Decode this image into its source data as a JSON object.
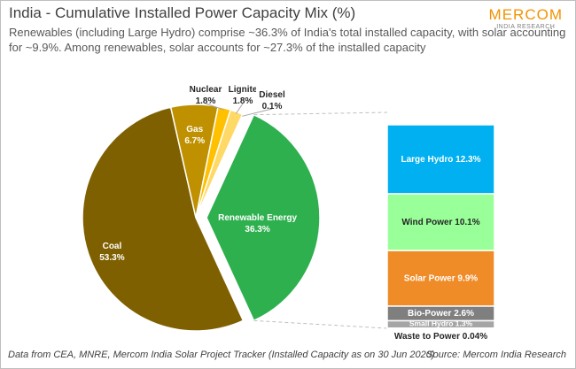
{
  "chart_data": [
    {
      "type": "pie",
      "title": "India - Cumulative Installed Power Capacity Mix (%)",
      "subtitle": "Renewables (including Large Hydro) comprise ~36.3% of India's total installed capacity, with solar accounting for ~9.9%. Among renewables, solar accounts for ~27.3% of the installed capacity",
      "categories": [
        "Coal",
        "Gas",
        "Nuclear",
        "Lignite",
        "Diesel",
        "Renewable Energy"
      ],
      "values": [
        53.3,
        6.7,
        1.8,
        1.8,
        0.1,
        36.3
      ],
      "value_labels": [
        "53.3%",
        "6.7%",
        "1.8%",
        "1.8%",
        "0.1%",
        "36.3%"
      ],
      "colors": [
        "#7f6000",
        "#bf9000",
        "#ffc000",
        "#ffd966",
        "#ffe699",
        "#2eb04f"
      ]
    },
    {
      "type": "stacked-bar",
      "categories": [
        "Large Hydro",
        "Wind Power",
        "Solar Power",
        "Bio-Power",
        "Small Hydro",
        "Waste to Power"
      ],
      "values": [
        12.3,
        10.1,
        9.9,
        2.6,
        1.3,
        0.04
      ],
      "value_labels": [
        "12.3%",
        "10.1%",
        "9.9%",
        "2.6%",
        "1.3%",
        "0.04%"
      ],
      "colors": [
        "#00b0f0",
        "#99ff99",
        "#f08c28",
        "#7f7f7f",
        "#a5a5a5",
        "#d9d9d9"
      ]
    }
  ],
  "logo": {
    "name": "MERCOM",
    "tagline": "INDIA RESEARCH"
  },
  "footnote": "Data from CEA, MNRE, Mercom India Solar Project Tracker  (Installed Capacity as on 30 Jun 2020)",
  "source": "Source: Mercom India Research"
}
